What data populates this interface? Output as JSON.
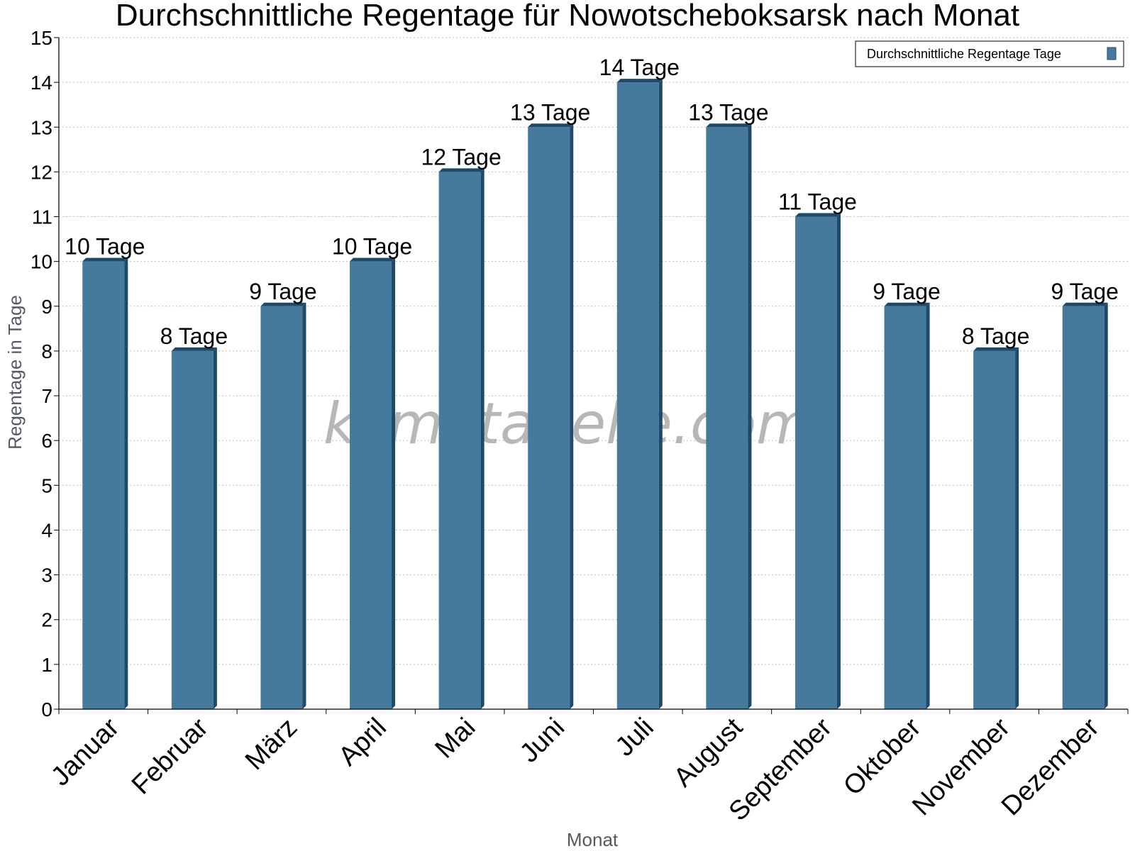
{
  "chart_data": {
    "type": "bar",
    "title": "Durchschnittliche Regentage für Nowotscheboksarsk nach Monat",
    "xlabel": "Monat",
    "ylabel": "Regentage in Tage",
    "categories": [
      "Januar",
      "Februar",
      "März",
      "April",
      "Mai",
      "Juni",
      "Juli",
      "August",
      "September",
      "Oktober",
      "November",
      "Dezember"
    ],
    "series": [
      {
        "name": "Durchschnittliche Regentage Tage",
        "values": [
          10,
          8,
          9,
          10,
          12,
          13,
          14,
          13,
          11,
          9,
          8,
          9
        ],
        "data_labels": [
          "10 Tage",
          "8 Tage",
          "9 Tage",
          "10 Tage",
          "12 Tage",
          "13 Tage",
          "14 Tage",
          "13 Tage",
          "11 Tage",
          "9 Tage",
          "8 Tage",
          "9 Tage"
        ],
        "color": "#467a9c",
        "edge_color": "#1d4a6b"
      }
    ],
    "ylim": [
      0,
      15
    ],
    "yticks": [
      "0",
      "1",
      "2",
      "3",
      "4",
      "5",
      "6",
      "7",
      "8",
      "9",
      "10",
      "11",
      "12",
      "13",
      "14",
      "15"
    ],
    "grid": true,
    "legend_position": "top-right"
  },
  "watermark": "klimatabelle.com"
}
